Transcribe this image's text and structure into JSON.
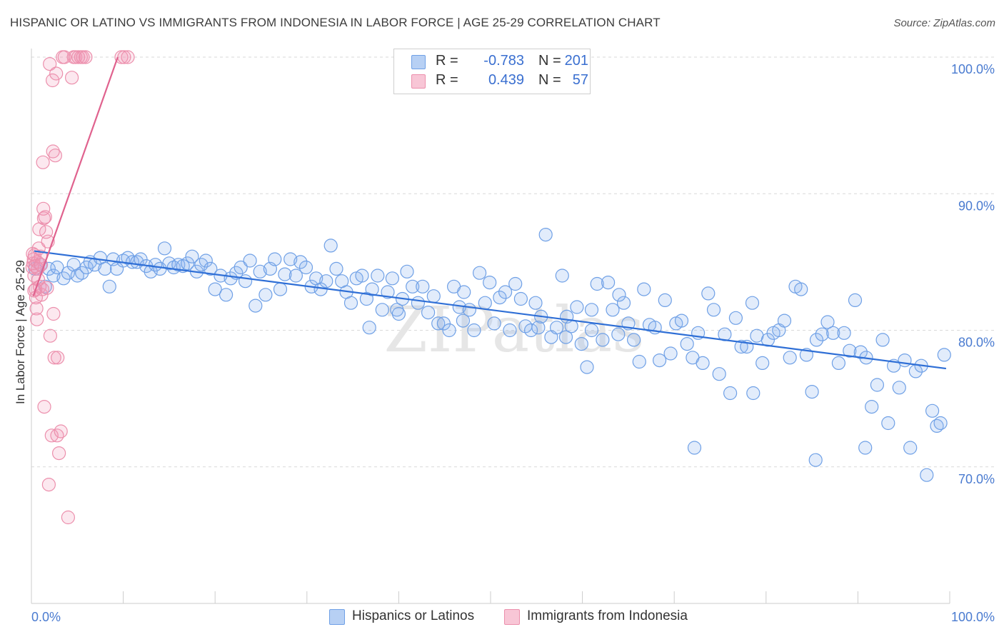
{
  "title": "HISPANIC OR LATINO VS IMMIGRANTS FROM INDONESIA IN LABOR FORCE | AGE 25-29 CORRELATION CHART",
  "source": "Source: ZipAtlas.com",
  "colors": {
    "blue": "#6fa0e6",
    "blue_fill": "rgba(140,180,240,0.25)",
    "blue_line": "#2f6fd6",
    "pink": "#ec8fac",
    "pink_fill": "rgba(240,150,180,0.22)",
    "pink_line": "#e0628e",
    "grid": "#d9d9d9",
    "tick_text": "#4a7bd0"
  },
  "legend": {
    "rows": [
      {
        "swatch": "blue",
        "r_label": "R =",
        "r_value": "-0.783",
        "n_label": "N =",
        "n_value": "201"
      },
      {
        "swatch": "pink",
        "r_label": "R =",
        "r_value": "0.439",
        "n_label": "N =",
        "n_value": "57"
      }
    ]
  },
  "bottom_legend": [
    {
      "swatch": "blue",
      "label": "Hispanics or Latinos"
    },
    {
      "swatch": "pink",
      "label": "Immigrants from Indonesia"
    }
  ],
  "chart_data": {
    "type": "scatter",
    "xlabel": "",
    "ylabel": "In Labor Force | Age 25-29",
    "xlim": [
      0,
      100
    ],
    "ylim": [
      60,
      100
    ],
    "x_tick_labels": [
      "0.0%",
      "100.0%"
    ],
    "y_ticks": [
      70,
      80,
      90,
      100
    ],
    "y_tick_labels": [
      "70.0%",
      "80.0%",
      "90.0%",
      "100.0%"
    ],
    "grid": true,
    "watermark": "ZIPatlas",
    "series": [
      {
        "name": "Hispanics or Latinos",
        "color": "blue",
        "trend": {
          "x": [
            0.3,
            99.6
          ],
          "y": [
            85.8,
            77.2
          ]
        },
        "points": [
          [
            0.4,
            84.5
          ],
          [
            1.0,
            84.8
          ],
          [
            1.5,
            83.2
          ],
          [
            1.9,
            84.5
          ],
          [
            2.4,
            84.0
          ],
          [
            2.8,
            84.6
          ],
          [
            3.5,
            83.8
          ],
          [
            4.0,
            84.2
          ],
          [
            4.6,
            84.8
          ],
          [
            5.0,
            84.0
          ],
          [
            5.5,
            84.2
          ],
          [
            6.0,
            84.6
          ],
          [
            6.4,
            85.0
          ],
          [
            6.9,
            84.8
          ],
          [
            7.5,
            85.3
          ],
          [
            8.0,
            84.5
          ],
          [
            8.5,
            83.2
          ],
          [
            8.9,
            85.2
          ],
          [
            9.3,
            84.5
          ],
          [
            10.0,
            85.1
          ],
          [
            10.5,
            85.3
          ],
          [
            11.0,
            85.0
          ],
          [
            11.5,
            85.0
          ],
          [
            11.9,
            85.2
          ],
          [
            12.5,
            84.7
          ],
          [
            13.0,
            84.3
          ],
          [
            13.5,
            84.8
          ],
          [
            14.0,
            84.5
          ],
          [
            14.5,
            86.0
          ],
          [
            15.0,
            84.9
          ],
          [
            15.5,
            84.6
          ],
          [
            16.0,
            84.8
          ],
          [
            16.5,
            84.7
          ],
          [
            17.0,
            84.9
          ],
          [
            17.5,
            85.4
          ],
          [
            18.0,
            84.3
          ],
          [
            18.5,
            84.8
          ],
          [
            19.0,
            85.1
          ],
          [
            19.5,
            84.5
          ],
          [
            20.0,
            83.0
          ],
          [
            20.6,
            84.0
          ],
          [
            21.2,
            82.6
          ],
          [
            21.7,
            83.8
          ],
          [
            22.3,
            84.2
          ],
          [
            22.8,
            84.6
          ],
          [
            23.3,
            83.6
          ],
          [
            23.8,
            85.1
          ],
          [
            24.4,
            81.8
          ],
          [
            24.9,
            84.3
          ],
          [
            25.5,
            82.6
          ],
          [
            26.0,
            84.5
          ],
          [
            26.5,
            85.2
          ],
          [
            27.1,
            83.0
          ],
          [
            27.6,
            84.1
          ],
          [
            28.2,
            85.2
          ],
          [
            28.8,
            84.0
          ],
          [
            29.3,
            85.0
          ],
          [
            29.9,
            84.6
          ],
          [
            30.5,
            83.2
          ],
          [
            31.0,
            83.8
          ],
          [
            31.5,
            83.0
          ],
          [
            32.1,
            83.6
          ],
          [
            32.6,
            86.2
          ],
          [
            33.2,
            84.5
          ],
          [
            33.8,
            83.6
          ],
          [
            34.3,
            82.8
          ],
          [
            34.8,
            82.0
          ],
          [
            35.4,
            83.8
          ],
          [
            36.0,
            84.0
          ],
          [
            36.5,
            82.3
          ],
          [
            37.1,
            83.0
          ],
          [
            37.7,
            84.0
          ],
          [
            38.2,
            81.5
          ],
          [
            38.8,
            82.8
          ],
          [
            39.3,
            83.8
          ],
          [
            39.8,
            81.5
          ],
          [
            40.4,
            82.3
          ],
          [
            40.9,
            84.3
          ],
          [
            41.5,
            83.2
          ],
          [
            42.1,
            82.0
          ],
          [
            42.6,
            83.2
          ],
          [
            43.2,
            81.3
          ],
          [
            43.8,
            82.5
          ],
          [
            44.3,
            80.5
          ],
          [
            44.9,
            80.5
          ],
          [
            45.5,
            80.0
          ],
          [
            46.0,
            83.2
          ],
          [
            46.6,
            81.7
          ],
          [
            47.1,
            82.8
          ],
          [
            47.7,
            81.5
          ],
          [
            48.2,
            80.0
          ],
          [
            48.8,
            84.2
          ],
          [
            49.4,
            82.0
          ],
          [
            49.9,
            83.5
          ],
          [
            50.4,
            80.5
          ],
          [
            51.0,
            82.4
          ],
          [
            51.6,
            82.8
          ],
          [
            52.1,
            80.0
          ],
          [
            52.7,
            83.4
          ],
          [
            53.3,
            82.3
          ],
          [
            53.8,
            80.3
          ],
          [
            54.4,
            80.0
          ],
          [
            54.9,
            82.0
          ],
          [
            55.5,
            81.0
          ],
          [
            56.0,
            87.0
          ],
          [
            56.6,
            79.5
          ],
          [
            57.2,
            80.2
          ],
          [
            57.8,
            84.0
          ],
          [
            58.3,
            81.0
          ],
          [
            58.8,
            80.3
          ],
          [
            59.4,
            81.7
          ],
          [
            59.9,
            79.0
          ],
          [
            60.5,
            77.3
          ],
          [
            61.0,
            81.5
          ],
          [
            61.6,
            83.4
          ],
          [
            62.2,
            79.3
          ],
          [
            62.8,
            83.5
          ],
          [
            63.3,
            81.5
          ],
          [
            63.9,
            79.7
          ],
          [
            64.5,
            82.0
          ],
          [
            65.0,
            80.5
          ],
          [
            65.6,
            79.3
          ],
          [
            66.2,
            77.7
          ],
          [
            66.7,
            83.0
          ],
          [
            67.3,
            80.4
          ],
          [
            67.9,
            80.2
          ],
          [
            68.4,
            77.8
          ],
          [
            69.0,
            82.2
          ],
          [
            69.6,
            78.3
          ],
          [
            70.2,
            80.5
          ],
          [
            70.8,
            80.7
          ],
          [
            71.4,
            79.0
          ],
          [
            72.0,
            78.0
          ],
          [
            72.6,
            79.8
          ],
          [
            73.1,
            77.6
          ],
          [
            73.7,
            82.7
          ],
          [
            74.3,
            81.5
          ],
          [
            74.9,
            76.8
          ],
          [
            75.5,
            79.7
          ],
          [
            76.1,
            75.4
          ],
          [
            76.7,
            80.9
          ],
          [
            77.3,
            78.8
          ],
          [
            77.9,
            78.8
          ],
          [
            78.5,
            82.0
          ],
          [
            79.0,
            79.6
          ],
          [
            79.6,
            77.6
          ],
          [
            80.2,
            79.3
          ],
          [
            80.8,
            79.8
          ],
          [
            81.4,
            80.0
          ],
          [
            82.0,
            80.7
          ],
          [
            82.6,
            78.0
          ],
          [
            83.2,
            83.2
          ],
          [
            83.8,
            83.0
          ],
          [
            84.4,
            78.2
          ],
          [
            85.0,
            75.5
          ],
          [
            85.5,
            79.3
          ],
          [
            86.1,
            79.7
          ],
          [
            86.7,
            80.6
          ],
          [
            87.3,
            79.8
          ],
          [
            87.9,
            77.6
          ],
          [
            88.5,
            79.8
          ],
          [
            89.1,
            78.5
          ],
          [
            89.7,
            82.2
          ],
          [
            90.3,
            78.4
          ],
          [
            90.9,
            78.0
          ],
          [
            91.5,
            74.4
          ],
          [
            92.1,
            76.0
          ],
          [
            92.7,
            79.3
          ],
          [
            93.3,
            73.2
          ],
          [
            93.9,
            77.4
          ],
          [
            94.5,
            75.8
          ],
          [
            95.1,
            77.8
          ],
          [
            95.7,
            71.4
          ],
          [
            96.3,
            77.0
          ],
          [
            96.9,
            77.4
          ],
          [
            97.5,
            69.4
          ],
          [
            98.1,
            74.1
          ],
          [
            98.6,
            73.0
          ],
          [
            99.0,
            73.2
          ],
          [
            99.4,
            78.2
          ],
          [
            72.2,
            71.4
          ],
          [
            78.6,
            75.4
          ],
          [
            85.4,
            70.5
          ],
          [
            90.8,
            71.4
          ],
          [
            55.2,
            80.2
          ],
          [
            58.2,
            79.5
          ],
          [
            47.0,
            80.7
          ],
          [
            40.0,
            81.2
          ],
          [
            36.8,
            80.2
          ],
          [
            61.0,
            80.0
          ],
          [
            64.0,
            82.6
          ]
        ]
      },
      {
        "name": "Immigrants from Indonesia",
        "color": "pink",
        "trend": {
          "x": [
            0.2,
            9.4
          ],
          "y": [
            82.5,
            100.0
          ]
        },
        "points": [
          [
            0.1,
            84.6
          ],
          [
            0.2,
            84.9
          ],
          [
            0.25,
            85.2
          ],
          [
            0.3,
            84.0
          ],
          [
            0.35,
            85.5
          ],
          [
            0.4,
            84.7
          ],
          [
            0.45,
            83.0
          ],
          [
            0.5,
            82.4
          ],
          [
            0.55,
            81.6
          ],
          [
            0.6,
            80.8
          ],
          [
            0.65,
            85.0
          ],
          [
            0.7,
            84.5
          ],
          [
            0.75,
            83.7
          ],
          [
            0.8,
            86.0
          ],
          [
            0.85,
            87.4
          ],
          [
            0.9,
            83.2
          ],
          [
            1.0,
            85.4
          ],
          [
            1.05,
            84.8
          ],
          [
            1.1,
            82.6
          ],
          [
            1.2,
            83.0
          ],
          [
            1.25,
            92.3
          ],
          [
            1.3,
            88.9
          ],
          [
            1.35,
            88.2
          ],
          [
            1.4,
            74.4
          ],
          [
            1.5,
            88.3
          ],
          [
            1.6,
            87.2
          ],
          [
            1.7,
            83.1
          ],
          [
            1.8,
            86.5
          ],
          [
            1.9,
            68.7
          ],
          [
            2.0,
            99.5
          ],
          [
            2.05,
            79.6
          ],
          [
            2.2,
            72.3
          ],
          [
            2.3,
            98.3
          ],
          [
            2.35,
            93.1
          ],
          [
            2.4,
            81.2
          ],
          [
            2.5,
            78.0
          ],
          [
            2.6,
            92.8
          ],
          [
            2.7,
            98.8
          ],
          [
            2.8,
            72.3
          ],
          [
            2.85,
            78.0
          ],
          [
            3.0,
            71.0
          ],
          [
            3.2,
            72.6
          ],
          [
            3.4,
            100.0
          ],
          [
            3.6,
            100.0
          ],
          [
            4.0,
            66.3
          ],
          [
            4.4,
            98.5
          ],
          [
            4.6,
            100.0
          ],
          [
            4.8,
            100.0
          ],
          [
            5.1,
            100.0
          ],
          [
            5.4,
            100.0
          ],
          [
            5.6,
            100.0
          ],
          [
            5.9,
            100.0
          ],
          [
            9.8,
            100.0
          ],
          [
            10.1,
            100.0
          ],
          [
            10.5,
            100.0
          ],
          [
            0.15,
            85.6
          ],
          [
            0.3,
            82.9
          ]
        ]
      }
    ]
  }
}
